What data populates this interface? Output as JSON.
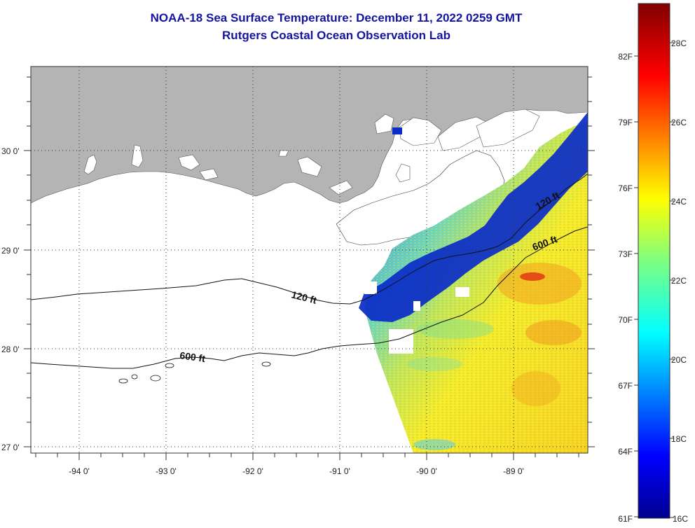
{
  "title": {
    "line1": "NOAA-18 Sea Surface Temperature:  December 11, 2022 0259 GMT",
    "line2": "Rutgers Coastal Ocean Observation Lab"
  },
  "axes": {
    "longitude_labels": [
      "-94 0'",
      "-93 0'",
      "-92 0'",
      "-91 0'",
      "-90 0'",
      "-89 0'"
    ],
    "latitude_labels": [
      "30 0'",
      "29 0'",
      "28 0'",
      "27 0'"
    ]
  },
  "contours": {
    "shallow_label": "120 ft",
    "deep_label": "600 ft",
    "shallow_label_east": "120 ft",
    "deep_label_east": "600 ft"
  },
  "colorbar": {
    "fahrenheit_labels": [
      "82F",
      "79F",
      "76F",
      "73F",
      "70F",
      "67F",
      "64F",
      "61F"
    ],
    "celsius_labels": [
      "28C",
      "26C",
      "24C",
      "22C",
      "20C",
      "18C",
      "16C"
    ],
    "range_celsius": [
      16,
      29
    ]
  },
  "colors": {
    "title": "#1414a0",
    "land": "#b4b4b4",
    "no_data": "#ffffff"
  }
}
